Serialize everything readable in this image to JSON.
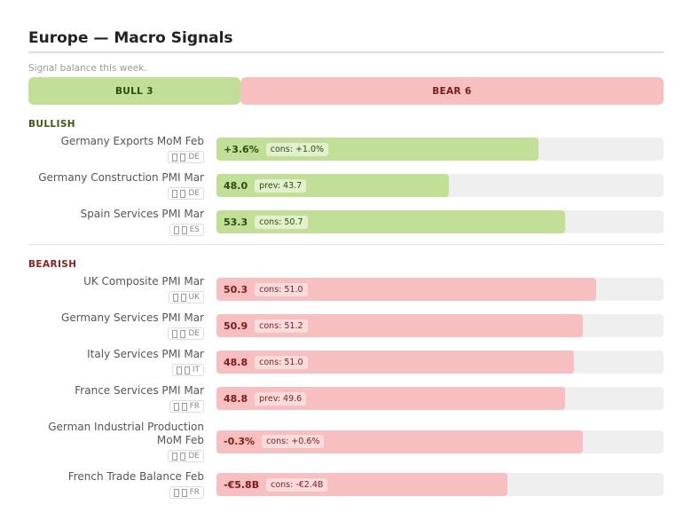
{
  "header": {
    "title": "Europe — Macro Signals",
    "subtitle": "Signal balance this week."
  },
  "balance": [
    {
      "label": "BULL",
      "count": 3,
      "tone": "bull"
    },
    {
      "label": "BEAR",
      "count": 6,
      "tone": "bear"
    }
  ],
  "sections": [
    {
      "title": "BULLISH",
      "tone": "bull",
      "items": [
        {
          "name": "Germany Exports MoM Feb",
          "country": "DE",
          "value": "+3.6%",
          "ref": "cons: +1.0%",
          "strength": 72
        },
        {
          "name": "Germany Construction PMI Mar",
          "country": "DE",
          "value": "48.0",
          "ref": "prev: 43.7",
          "strength": 52
        },
        {
          "name": "Spain Services PMI Mar",
          "country": "ES",
          "value": "53.3",
          "ref": "cons: 50.7",
          "strength": 78
        }
      ]
    },
    {
      "title": "BEARISH",
      "tone": "bear",
      "items": [
        {
          "name": "UK Composite PMI Mar",
          "country": "UK",
          "value": "50.3",
          "ref": "cons: 51.0",
          "strength": 85
        },
        {
          "name": "Germany Services PMI Mar",
          "country": "DE",
          "value": "50.9",
          "ref": "cons: 51.2",
          "strength": 82
        },
        {
          "name": "Italy Services PMI Mar",
          "country": "IT",
          "value": "48.8",
          "ref": "cons: 51.0",
          "strength": 80
        },
        {
          "name": "France Services PMI Mar",
          "country": "FR",
          "value": "48.8",
          "ref": "prev: 49.6",
          "strength": 78
        },
        {
          "name": "German Industrial Production MoM Feb",
          "country": "DE",
          "value": "-0.3%",
          "ref": "cons: +0.6%",
          "strength": 82
        },
        {
          "name": "French Trade Balance Feb",
          "country": "FR",
          "value": "-€5.8B",
          "ref": "cons: -€2.4B",
          "strength": 65
        }
      ]
    }
  ]
}
